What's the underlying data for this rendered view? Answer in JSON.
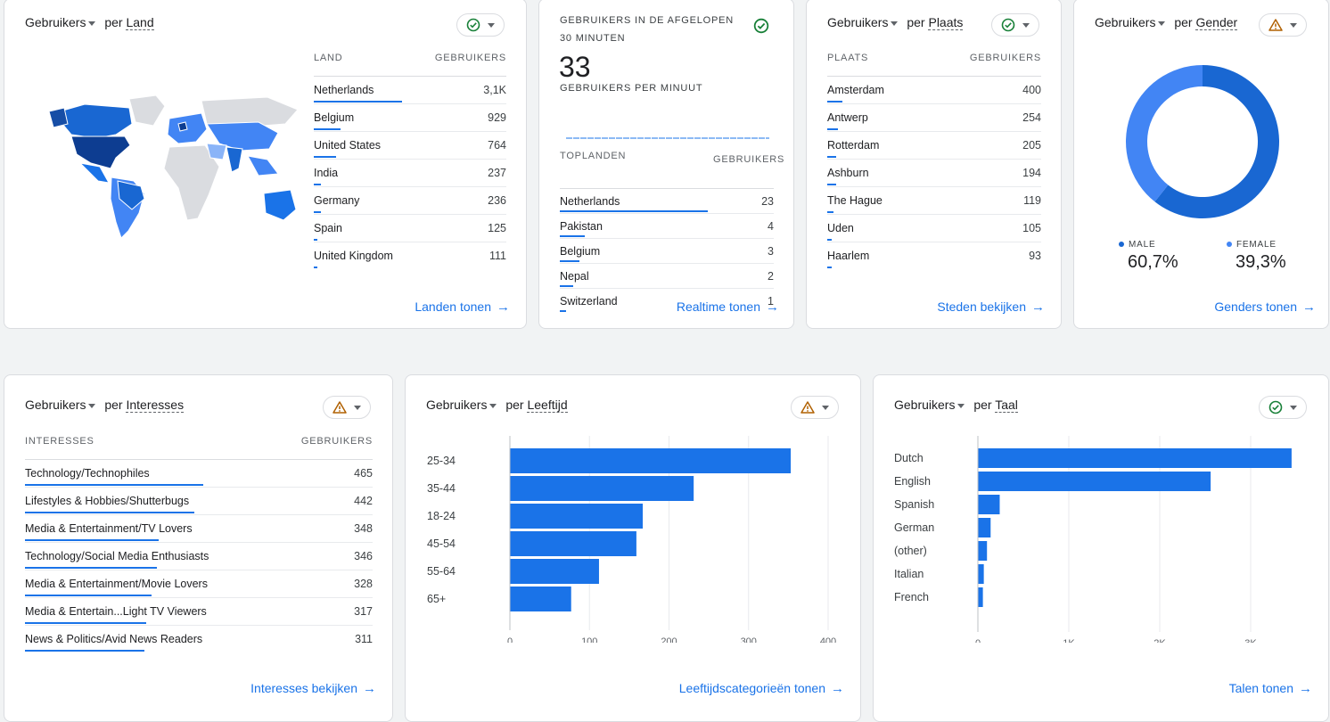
{
  "country_card": {
    "metric": "Gebruikers",
    "per": "per",
    "dimension": "Land",
    "col_dim": "LAND",
    "col_metric": "GEBRUIKERS",
    "rows": [
      {
        "label": "Netherlands",
        "value": "3,1K",
        "share": 1.0
      },
      {
        "label": "Belgium",
        "value": "929",
        "share": 0.3
      },
      {
        "label": "United States",
        "value": "764",
        "share": 0.25
      },
      {
        "label": "India",
        "value": "237",
        "share": 0.08
      },
      {
        "label": "Germany",
        "value": "236",
        "share": 0.08
      },
      {
        "label": "Spain",
        "value": "125",
        "share": 0.04
      },
      {
        "label": "United Kingdom",
        "value": "111",
        "share": 0.04
      }
    ],
    "link": "Landen tonen",
    "status": "ok"
  },
  "realtime_card": {
    "title": "GEBRUIKERS IN DE AFGELOPEN 30 MINUTEN",
    "count": "33",
    "subtitle": "GEBRUIKERS PER MINUUT",
    "col_dim": "TOPLANDEN",
    "col_metric": "GEBRUIKERS",
    "rows": [
      {
        "label": "Netherlands",
        "value": "23",
        "share": 1.0
      },
      {
        "label": "Pakistan",
        "value": "4",
        "share": 0.17
      },
      {
        "label": "Belgium",
        "value": "3",
        "share": 0.13
      },
      {
        "label": "Nepal",
        "value": "2",
        "share": 0.09
      },
      {
        "label": "Switzerland",
        "value": "1",
        "share": 0.04
      }
    ],
    "link": "Realtime tonen",
    "status": "ok"
  },
  "city_card": {
    "metric": "Gebruikers",
    "per": "per",
    "dimension": "Plaats",
    "col_dim": "PLAATS",
    "col_metric": "GEBRUIKERS",
    "rows": [
      {
        "label": "Amsterdam",
        "value": "400",
        "share": 0.07
      },
      {
        "label": "Antwerp",
        "value": "254",
        "share": 0.05
      },
      {
        "label": "Rotterdam",
        "value": "205",
        "share": 0.04
      },
      {
        "label": "Ashburn",
        "value": "194",
        "share": 0.04
      },
      {
        "label": "The Hague",
        "value": "119",
        "share": 0.03
      },
      {
        "label": "Uden",
        "value": "105",
        "share": 0.02
      },
      {
        "label": "Haarlem",
        "value": "93",
        "share": 0.02
      }
    ],
    "link": "Steden bekijken",
    "status": "ok"
  },
  "gender_card": {
    "metric": "Gebruikers",
    "per": "per",
    "dimension": "Gender",
    "chart_data": {
      "type": "pie",
      "labels": [
        "MALE",
        "FEMALE"
      ],
      "values": [
        60.7,
        39.3
      ],
      "display": [
        "60,7%",
        "39,3%"
      ],
      "colors": [
        "#1967d2",
        "#4285f4"
      ]
    },
    "link": "Genders tonen",
    "status": "warning"
  },
  "interests_card": {
    "metric": "Gebruikers",
    "per": "per",
    "dimension": "Interesses",
    "col_dim": "INTERESSES",
    "col_metric": "GEBRUIKERS",
    "rows": [
      {
        "label": "Technology/Technophiles",
        "value": "465",
        "share": 1.0
      },
      {
        "label": "Lifestyles & Hobbies/Shutterbugs",
        "value": "442",
        "share": 0.95
      },
      {
        "label": "Media & Entertainment/TV Lovers",
        "value": "348",
        "share": 0.75
      },
      {
        "label": "Technology/Social Media Enthusiasts",
        "value": "346",
        "share": 0.74
      },
      {
        "label": "Media & Entertainment/Movie Lovers",
        "value": "328",
        "share": 0.71
      },
      {
        "label": "Media & Entertain...Light TV Viewers",
        "value": "317",
        "share": 0.68
      },
      {
        "label": "News & Politics/Avid News Readers",
        "value": "311",
        "share": 0.67
      }
    ],
    "link": "Interesses bekijken",
    "status": "warning"
  },
  "age_card": {
    "metric": "Gebruikers",
    "per": "per",
    "dimension": "Leeftijd",
    "chart_data": {
      "type": "bar",
      "orientation": "horizontal",
      "categories": [
        "25-34",
        "35-44",
        "18-24",
        "45-54",
        "55-64",
        "65+"
      ],
      "values": [
        353,
        231,
        167,
        159,
        112,
        77
      ],
      "xlim": [
        0,
        400
      ],
      "xticks": [
        0,
        100,
        200,
        300,
        400
      ],
      "xtick_labels": [
        "0",
        "100",
        "200",
        "300",
        "400"
      ],
      "color": "#1a73e8"
    },
    "link": "Leeftijdscategorieën tonen",
    "status": "warning"
  },
  "language_card": {
    "metric": "Gebruikers",
    "per": "per",
    "dimension": "Taal",
    "chart_data": {
      "type": "bar",
      "orientation": "horizontal",
      "categories": [
        "Dutch",
        "English",
        "Spanish",
        "German",
        "(other)",
        "Italian",
        "French"
      ],
      "values": [
        3450,
        2560,
        240,
        140,
        100,
        65,
        55
      ],
      "xlim": [
        0,
        3500
      ],
      "xticks": [
        0,
        1000,
        2000,
        3000
      ],
      "xtick_labels": [
        "0",
        "1K",
        "2K",
        "3K"
      ],
      "color": "#1a73e8"
    },
    "link": "Talen tonen",
    "status": "ok"
  },
  "colors": {
    "accent": "#1a73e8",
    "ok": "#188038",
    "warning": "#b06000"
  },
  "icons": {
    "ok": "check-circle-icon",
    "warning": "warning-triangle-icon",
    "link": "arrow-right-icon"
  }
}
